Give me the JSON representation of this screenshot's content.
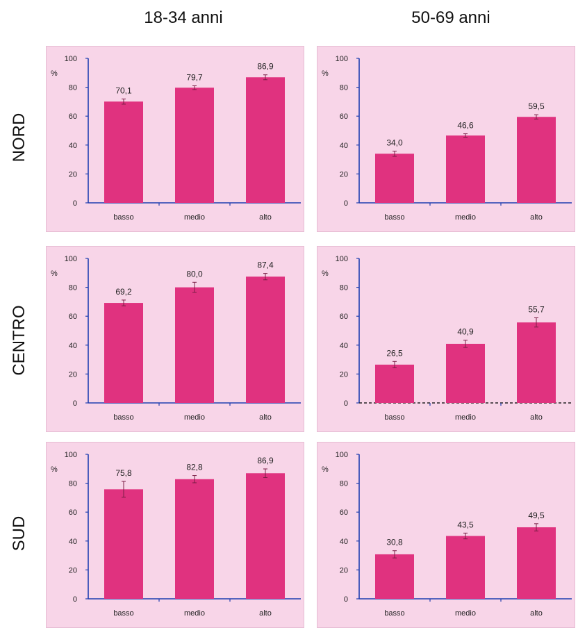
{
  "columns": [
    "18-34 anni",
    "50-69 anni"
  ],
  "rows": [
    "NORD",
    "CENTRO",
    "SUD"
  ],
  "colors": {
    "bar": "#e0327f",
    "axis": "#1f3fb0",
    "panel_bg": "#f8d5e8",
    "error_bar": "#7a1d45"
  },
  "chart_data": [
    {
      "type": "bar",
      "panel": "NORD 18-34 anni",
      "ylabel": "%",
      "ylim": [
        0,
        100
      ],
      "yticks": [
        0,
        20,
        40,
        60,
        80,
        100
      ],
      "categories": [
        "basso",
        "medio",
        "alto"
      ],
      "values": [
        70.1,
        79.7,
        86.9
      ],
      "value_labels": [
        "70,1",
        "79,7",
        "86,9"
      ],
      "errors": [
        1.8,
        1.3,
        1.7
      ]
    },
    {
      "type": "bar",
      "panel": "NORD 50-69 anni",
      "ylabel": "%",
      "ylim": [
        0,
        100
      ],
      "yticks": [
        0,
        20,
        40,
        60,
        80,
        100
      ],
      "categories": [
        "basso",
        "medio",
        "alto"
      ],
      "values": [
        34.0,
        46.6,
        59.5
      ],
      "value_labels": [
        "34,0",
        "46,6",
        "59,5"
      ],
      "errors": [
        1.8,
        1.2,
        1.5
      ]
    },
    {
      "type": "bar",
      "panel": "CENTRO 18-34 anni",
      "ylabel": "%",
      "ylim": [
        0,
        100
      ],
      "yticks": [
        0,
        20,
        40,
        60,
        80,
        100
      ],
      "categories": [
        "basso",
        "medio",
        "alto"
      ],
      "values": [
        69.2,
        80.0,
        87.4
      ],
      "value_labels": [
        "69,2",
        "80,0",
        "87,4"
      ],
      "errors": [
        2.0,
        3.5,
        2.2
      ]
    },
    {
      "type": "bar",
      "panel": "CENTRO 50-69 anni",
      "ylabel": "%",
      "ylim": [
        0,
        100
      ],
      "yticks": [
        0,
        20,
        40,
        60,
        80,
        100
      ],
      "categories": [
        "basso",
        "medio",
        "alto"
      ],
      "values": [
        26.5,
        40.9,
        55.7
      ],
      "value_labels": [
        "26,5",
        "40,9",
        "55,7"
      ],
      "errors": [
        2.2,
        2.5,
        3.2
      ],
      "baseline_dashed": true
    },
    {
      "type": "bar",
      "panel": "SUD 18-34 anni",
      "ylabel": "%",
      "ylim": [
        0,
        100
      ],
      "yticks": [
        0,
        20,
        40,
        60,
        80,
        100
      ],
      "categories": [
        "basso",
        "medio",
        "alto"
      ],
      "values": [
        75.8,
        82.8,
        86.9
      ],
      "value_labels": [
        "75,8",
        "82,8",
        "86,9"
      ],
      "errors": [
        5.5,
        2.5,
        3.0
      ]
    },
    {
      "type": "bar",
      "panel": "SUD 50-69 anni",
      "ylabel": "%",
      "ylim": [
        0,
        100
      ],
      "yticks": [
        0,
        20,
        40,
        60,
        80,
        100
      ],
      "categories": [
        "basso",
        "medio",
        "alto"
      ],
      "values": [
        30.8,
        43.5,
        49.5
      ],
      "value_labels": [
        "30,8",
        "43,5",
        "49,5"
      ],
      "errors": [
        2.5,
        2.0,
        2.5
      ]
    }
  ]
}
